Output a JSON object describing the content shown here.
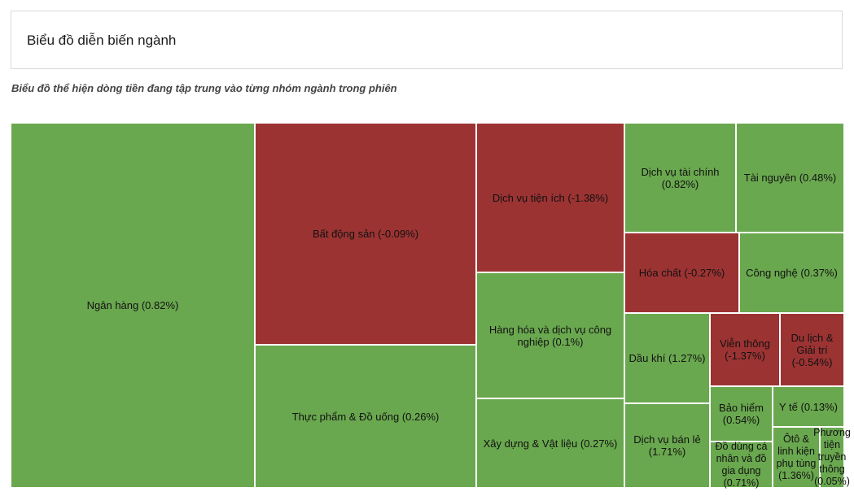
{
  "header": {
    "title": "Biểu đồ diễn biến ngành"
  },
  "subtitle": "Biểu đồ thể hiện dòng tiền đang tập trung vào từng nhóm ngành trong phiên",
  "colors": {
    "positive": "#6aa84f",
    "negative": "#9c3333",
    "border": "#ffffff"
  },
  "chart_data": {
    "type": "treemap",
    "title": "Biểu đồ diễn biến ngành",
    "subtitle": "Biểu đồ thể hiện dòng tiền đang tập trung vào từng nhóm ngành trong phiên",
    "items": [
      {
        "name": "Ngân hàng",
        "change": 0.82,
        "label": "Ngân hàng (0.82%)"
      },
      {
        "name": "Bất động sản",
        "change": -0.09,
        "label": "Bất động sản (-0.09%)"
      },
      {
        "name": "Thực phẩm & Đồ uống",
        "change": 0.26,
        "label": "Thực phẩm & Đồ uống (0.26%)"
      },
      {
        "name": "Dịch vụ tiện ích",
        "change": -1.38,
        "label": "Dịch vụ tiện ích (-1.38%)"
      },
      {
        "name": "Hàng hóa và dịch vụ công nghiệp",
        "change": 0.1,
        "label": "Hàng hóa và dịch vụ công nghiệp (0.1%)"
      },
      {
        "name": "Xây dựng & Vật liệu",
        "change": 0.27,
        "label": "Xây dựng & Vật liệu (0.27%)"
      },
      {
        "name": "Dịch vụ tài chính",
        "change": 0.82,
        "label": "Dịch vụ tài chính (0.82%)"
      },
      {
        "name": "Tài nguyên",
        "change": 0.48,
        "label": "Tài nguyên (0.48%)"
      },
      {
        "name": "Hóa chất",
        "change": -0.27,
        "label": "Hóa chất (-0.27%)"
      },
      {
        "name": "Công nghệ",
        "change": 0.37,
        "label": "Công nghệ (0.37%)"
      },
      {
        "name": "Dầu khí",
        "change": 1.27,
        "label": "Dầu khí (1.27%)"
      },
      {
        "name": "Viễn thông",
        "change": -1.37,
        "label": "Viễn thông (-1.37%)"
      },
      {
        "name": "Du lịch & Giải trí",
        "change": -0.54,
        "label": "Du lịch & Giải trí (-0.54%)"
      },
      {
        "name": "Dịch vụ bán lẻ",
        "change": 1.71,
        "label": "Dịch vụ bán lẻ (1.71%)"
      },
      {
        "name": "Bảo hiểm",
        "change": 0.54,
        "label": "Bảo hiểm (0.54%)"
      },
      {
        "name": "Y tế",
        "change": 0.13,
        "label": "Y tế (0.13%)"
      },
      {
        "name": "Đồ dùng cá nhân và đồ gia dụng",
        "change": 0.71,
        "label": "Đồ dùng cá nhân và đồ gia dụng (0.71%)"
      },
      {
        "name": "Ôtô & linh kiện phụ tùng",
        "change": 1.36,
        "label": "Ôtô & linh kiện phụ tùng (1.36%)"
      },
      {
        "name": "Phương tiện truyền thông",
        "change": 0.05,
        "label": "Phương tiện truyền thông (0.05%)"
      }
    ]
  }
}
